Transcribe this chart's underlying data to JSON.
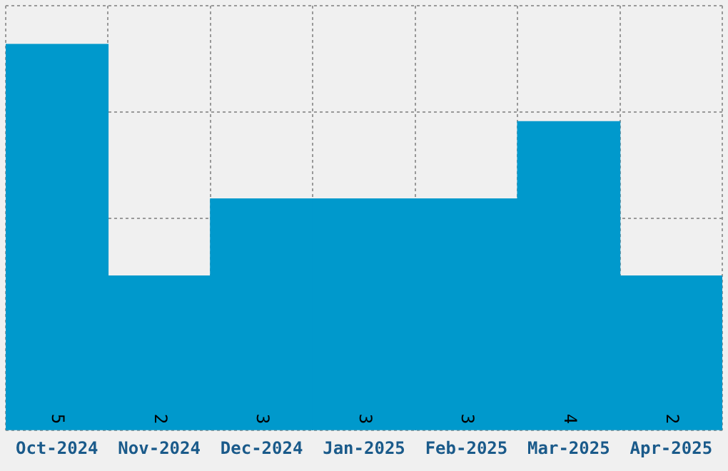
{
  "chart_data": {
    "type": "bar",
    "categories": [
      "Oct-2024",
      "Nov-2024",
      "Dec-2024",
      "Jan-2025",
      "Feb-2025",
      "Mar-2025",
      "Apr-2025"
    ],
    "values": [
      5,
      2,
      3,
      3,
      3,
      4,
      2
    ],
    "color": "#0099cc",
    "ylim": [
      0,
      5.5
    ],
    "grid": true,
    "tick_labels": "x",
    "data_labels": true
  }
}
